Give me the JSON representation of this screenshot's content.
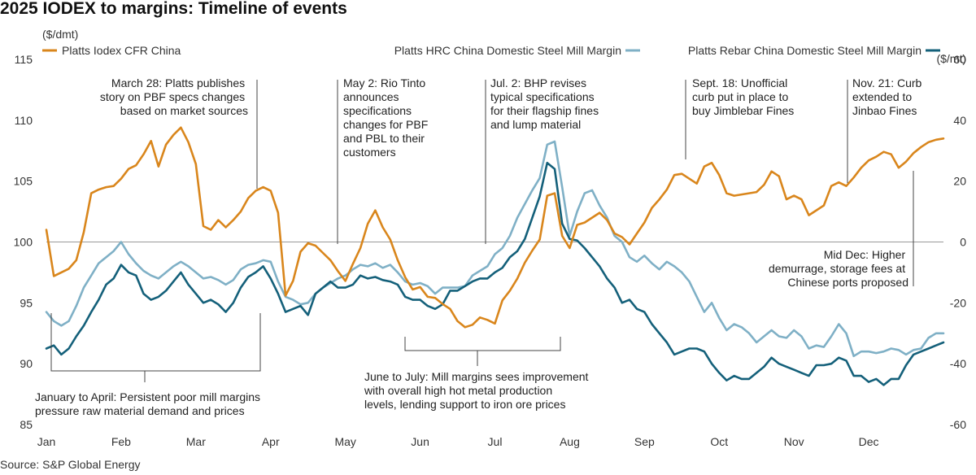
{
  "title": "2025 IODEX to margins: Timeline of events",
  "source": "Source: S&P Global Energy",
  "colors": {
    "iodex": "#d9861c",
    "hrc": "#7fb0c6",
    "rebar": "#14607a",
    "zero": "#999999",
    "annotation": "#444444"
  },
  "chart_data": {
    "type": "line",
    "title": "2025 IODEX to margins: Timeline of events",
    "left_axis": {
      "label": "($/dmt)",
      "ylim": [
        85,
        115
      ],
      "ticks": [
        85,
        90,
        95,
        100,
        105,
        110,
        115
      ]
    },
    "right_axis": {
      "label": "($/mt)",
      "ylim": [
        -60,
        60
      ],
      "ticks": [
        -60,
        -40,
        -20,
        0,
        20,
        40,
        60
      ]
    },
    "x_axis": {
      "categories": [
        "Jan",
        "Feb",
        "Mar",
        "Apr",
        "May",
        "Jun",
        "Jul",
        "Aug",
        "Sep",
        "Oct",
        "Nov",
        "Dec"
      ],
      "xlim": [
        0,
        12
      ]
    },
    "grid": false,
    "legend_placement": "top",
    "series": [
      {
        "name": "Platts Iodex CFR China",
        "axis": "left",
        "key": "iodex",
        "x": [
          0.0,
          0.1,
          0.2,
          0.3,
          0.4,
          0.5,
          0.6,
          0.7,
          0.8,
          0.9,
          1.0,
          1.1,
          1.2,
          1.3,
          1.4,
          1.5,
          1.6,
          1.7,
          1.8,
          1.9,
          2.0,
          2.1,
          2.2,
          2.3,
          2.4,
          2.5,
          2.6,
          2.7,
          2.8,
          2.9,
          3.0,
          3.1,
          3.2,
          3.3,
          3.4,
          3.5,
          3.6,
          3.7,
          3.8,
          3.9,
          4.0,
          4.1,
          4.2,
          4.3,
          4.4,
          4.5,
          4.6,
          4.7,
          4.8,
          4.9,
          5.0,
          5.1,
          5.2,
          5.3,
          5.4,
          5.5,
          5.6,
          5.7,
          5.8,
          5.9,
          6.0,
          6.1,
          6.2,
          6.3,
          6.4,
          6.5,
          6.6,
          6.7,
          6.8,
          6.9,
          7.0,
          7.1,
          7.2,
          7.3,
          7.4,
          7.5,
          7.6,
          7.7,
          7.8,
          7.9,
          8.0,
          8.1,
          8.2,
          8.3,
          8.4,
          8.5,
          8.6,
          8.7,
          8.8,
          8.9,
          9.0,
          9.1,
          9.2,
          9.3,
          9.4,
          9.5,
          9.6,
          9.7,
          9.8,
          9.9,
          10.0,
          10.1,
          10.2,
          10.3,
          10.4,
          10.5,
          10.6,
          10.7,
          10.8,
          10.9,
          11.0,
          11.1,
          11.2,
          11.3,
          11.4,
          11.5,
          11.6,
          11.7,
          11.8,
          11.9,
          12.0
        ],
        "values": [
          101.0,
          97.2,
          97.5,
          97.8,
          98.5,
          100.8,
          104.0,
          104.3,
          104.5,
          104.6,
          105.2,
          106.0,
          106.3,
          107.2,
          108.3,
          106.2,
          108.0,
          108.8,
          109.4,
          108.2,
          106.4,
          101.3,
          101.0,
          101.8,
          101.2,
          101.8,
          102.5,
          103.6,
          104.2,
          104.5,
          104.2,
          102.4,
          95.6,
          96.8,
          99.2,
          99.9,
          99.7,
          99.1,
          98.5,
          97.6,
          96.8,
          98.2,
          99.5,
          101.5,
          102.6,
          101.2,
          100.2,
          98.5,
          97.1,
          96.1,
          96.3,
          95.5,
          95.4,
          94.9,
          94.5,
          93.5,
          93.0,
          93.2,
          93.8,
          93.6,
          93.3,
          95.2,
          96.0,
          97.0,
          98.3,
          99.3,
          100.2,
          103.8,
          104.0,
          100.5,
          99.5,
          101.4,
          101.6,
          102.0,
          102.4,
          101.8,
          100.7,
          100.4,
          99.8,
          100.7,
          101.6,
          102.8,
          103.5,
          104.3,
          105.5,
          105.6,
          105.2,
          104.8,
          106.2,
          106.5,
          105.5,
          104.0,
          103.8,
          103.9,
          104.0,
          104.1,
          104.7,
          105.8,
          105.4,
          103.5,
          103.8,
          103.5,
          102.2,
          102.6,
          103.0,
          104.6,
          104.9,
          104.6,
          105.3,
          106.1,
          106.7,
          107.0,
          107.4,
          107.2,
          106.1,
          106.6,
          107.3,
          107.8,
          108.2,
          108.4,
          108.5
        ]
      },
      {
        "name": "Platts HRC China Domestic Steel Mill Margin",
        "axis": "right",
        "key": "hrc",
        "x": [
          0.0,
          0.1,
          0.2,
          0.3,
          0.4,
          0.5,
          0.6,
          0.7,
          0.8,
          0.9,
          1.0,
          1.1,
          1.2,
          1.3,
          1.4,
          1.5,
          1.6,
          1.7,
          1.8,
          1.9,
          2.0,
          2.1,
          2.2,
          2.3,
          2.4,
          2.5,
          2.6,
          2.7,
          2.8,
          2.9,
          3.0,
          3.1,
          3.2,
          3.3,
          3.4,
          3.5,
          3.6,
          3.7,
          3.8,
          3.9,
          4.0,
          4.1,
          4.2,
          4.3,
          4.4,
          4.5,
          4.6,
          4.7,
          4.8,
          4.9,
          5.0,
          5.1,
          5.2,
          5.3,
          5.4,
          5.5,
          5.6,
          5.7,
          5.8,
          5.9,
          6.0,
          6.1,
          6.2,
          6.3,
          6.4,
          6.5,
          6.6,
          6.7,
          6.8,
          6.9,
          7.0,
          7.1,
          7.2,
          7.3,
          7.4,
          7.5,
          7.6,
          7.7,
          7.8,
          7.9,
          8.0,
          8.1,
          8.2,
          8.3,
          8.4,
          8.5,
          8.6,
          8.7,
          8.8,
          8.9,
          9.0,
          9.1,
          9.2,
          9.3,
          9.4,
          9.5,
          9.6,
          9.7,
          9.8,
          9.9,
          10.0,
          10.1,
          10.2,
          10.3,
          10.4,
          10.5,
          10.6,
          10.7,
          10.8,
          10.9,
          11.0,
          11.1,
          11.2,
          11.3,
          11.4,
          11.5,
          11.6,
          11.7,
          11.8,
          11.9,
          12.0
        ],
        "values": [
          -23.0,
          -26.0,
          -27.5,
          -26.0,
          -21.0,
          -15.0,
          -11.0,
          -7.0,
          -5.0,
          -3.0,
          0.0,
          -4.0,
          -7.0,
          -9.5,
          -11.0,
          -12.0,
          -10.0,
          -8.0,
          -6.5,
          -8.0,
          -10.0,
          -12.0,
          -11.5,
          -12.5,
          -14.0,
          -12.5,
          -9.0,
          -7.5,
          -7.0,
          -6.0,
          -6.5,
          -13.0,
          -18.0,
          -19.0,
          -20.5,
          -20.0,
          -17.0,
          -15.0,
          -13.5,
          -12.0,
          -11.0,
          -9.0,
          -7.5,
          -8.0,
          -7.0,
          -8.5,
          -7.5,
          -10.0,
          -13.0,
          -14.0,
          -13.5,
          -14.5,
          -17.0,
          -15.0,
          -15.0,
          -15.0,
          -14.5,
          -11.0,
          -9.5,
          -8.0,
          -4.0,
          -2.0,
          2.0,
          8.0,
          12.5,
          17.0,
          21.0,
          32.0,
          33.0,
          18.0,
          2.0,
          10.0,
          16.0,
          17.0,
          12.0,
          8.0,
          2.0,
          0.0,
          -5.0,
          -6.5,
          -4.5,
          -7.0,
          -9.0,
          -6.5,
          -8.0,
          -10.0,
          -13.0,
          -18.0,
          -23.0,
          -20.0,
          -25.0,
          -29.0,
          -27.0,
          -28.0,
          -30.0,
          -33.0,
          -31.0,
          -29.0,
          -31.0,
          -31.5,
          -29.0,
          -31.0,
          -35.0,
          -34.0,
          -34.5,
          -31.0,
          -27.0,
          -30.0,
          -37.5,
          -36.0,
          -36.0,
          -36.5,
          -36.0,
          -35.0,
          -35.5,
          -37.0,
          -35.5,
          -35.0,
          -31.5,
          -30.0,
          -30.0
        ]
      },
      {
        "name": "Platts Rebar China Domestic Steel Mill Margin",
        "axis": "right",
        "key": "rebar",
        "x": [
          0.0,
          0.1,
          0.2,
          0.3,
          0.4,
          0.5,
          0.6,
          0.7,
          0.8,
          0.9,
          1.0,
          1.1,
          1.2,
          1.3,
          1.4,
          1.5,
          1.6,
          1.7,
          1.8,
          1.9,
          2.0,
          2.1,
          2.2,
          2.3,
          2.4,
          2.5,
          2.6,
          2.7,
          2.8,
          2.9,
          3.0,
          3.1,
          3.2,
          3.3,
          3.4,
          3.5,
          3.6,
          3.7,
          3.8,
          3.9,
          4.0,
          4.1,
          4.2,
          4.3,
          4.4,
          4.5,
          4.6,
          4.7,
          4.8,
          4.9,
          5.0,
          5.1,
          5.2,
          5.3,
          5.4,
          5.5,
          5.6,
          5.7,
          5.8,
          5.9,
          6.0,
          6.1,
          6.2,
          6.3,
          6.4,
          6.5,
          6.6,
          6.7,
          6.8,
          6.9,
          7.0,
          7.1,
          7.2,
          7.3,
          7.4,
          7.5,
          7.6,
          7.7,
          7.8,
          7.9,
          8.0,
          8.1,
          8.2,
          8.3,
          8.4,
          8.5,
          8.6,
          8.7,
          8.8,
          8.9,
          9.0,
          9.1,
          9.2,
          9.3,
          9.4,
          9.5,
          9.6,
          9.7,
          9.8,
          9.9,
          10.0,
          10.1,
          10.2,
          10.3,
          10.4,
          10.5,
          10.6,
          10.7,
          10.8,
          10.9,
          11.0,
          11.1,
          11.2,
          11.3,
          11.4,
          11.5,
          11.6,
          11.7,
          11.8,
          11.9,
          12.0
        ],
        "values": [
          -35.0,
          -34.0,
          -37.0,
          -35.0,
          -31.0,
          -27.5,
          -23.0,
          -19.0,
          -14.0,
          -12.0,
          -7.5,
          -10.0,
          -11.0,
          -17.0,
          -19.0,
          -18.0,
          -16.0,
          -13.0,
          -10.0,
          -14.0,
          -17.0,
          -20.0,
          -19.0,
          -20.5,
          -23.0,
          -20.0,
          -15.0,
          -11.5,
          -10.0,
          -8.0,
          -12.0,
          -17.0,
          -23.0,
          -22.0,
          -21.0,
          -24.0,
          -17.0,
          -15.0,
          -13.0,
          -15.0,
          -15.0,
          -14.0,
          -11.0,
          -12.0,
          -11.5,
          -12.5,
          -13.0,
          -14.0,
          -18.0,
          -19.0,
          -19.0,
          -21.0,
          -22.0,
          -20.5,
          -16.0,
          -16.0,
          -14.5,
          -13.0,
          -12.0,
          -12.0,
          -10.0,
          -8.5,
          -5.0,
          -3.0,
          1.0,
          8.0,
          15.0,
          26.0,
          24.0,
          6.0,
          1.0,
          0.5,
          -2.0,
          -5.0,
          -8.0,
          -12.0,
          -15.0,
          -20.0,
          -19.0,
          -22.0,
          -23.0,
          -27.0,
          -30.0,
          -33.0,
          -37.0,
          -36.0,
          -35.0,
          -35.0,
          -36.0,
          -40.0,
          -43.0,
          -45.5,
          -44.0,
          -45.0,
          -45.0,
          -43.0,
          -41.0,
          -38.0,
          -40.0,
          -41.0,
          -42.0,
          -43.0,
          -44.0,
          -40.5,
          -40.5,
          -40.0,
          -38.0,
          -39.0,
          -44.0,
          -44.0,
          -46.0,
          -45.0,
          -47.0,
          -45.0,
          -45.0,
          -40.5,
          -37.0,
          -36.0,
          -35.0,
          -34.0,
          -33.0
        ]
      }
    ],
    "annotations": [
      {
        "id": "march28",
        "lines": [
          "March 28: Platts publishes",
          "story on PBF specs changes",
          "based on market sources"
        ]
      },
      {
        "id": "may2",
        "lines": [
          "May 2: Rio Tinto",
          "announces",
          "specifications",
          "changes for PBF",
          "and PBL to their",
          "customers"
        ]
      },
      {
        "id": "jul2",
        "lines": [
          "Jul. 2: BHP revises",
          "typical specifications",
          "for their flagship fines",
          "and lump material"
        ]
      },
      {
        "id": "sept18",
        "lines": [
          "Sept. 18: Unofficial",
          "curb put in place to",
          "buy Jimblebar Fines"
        ]
      },
      {
        "id": "nov21",
        "lines": [
          "Nov. 21: Curb",
          "extended to",
          "Jinbao Fines"
        ]
      },
      {
        "id": "middec",
        "lines": [
          "Mid Dec: Higher",
          "demurrage, storage fees at",
          "Chinese ports proposed"
        ]
      },
      {
        "id": "janapr",
        "lines": [
          "January to April: Persistent poor mill margins",
          "pressure raw material demand and prices"
        ]
      },
      {
        "id": "junjul",
        "lines": [
          "June to July: Mill margins sees improvement",
          "with overall high hot metal production",
          "levels, lending support to iron ore prices"
        ]
      }
    ]
  }
}
